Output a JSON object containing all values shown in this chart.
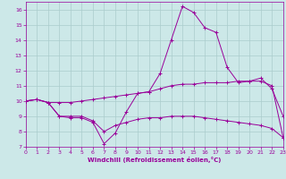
{
  "x": [
    0,
    1,
    2,
    3,
    4,
    5,
    6,
    7,
    8,
    9,
    10,
    11,
    12,
    13,
    14,
    15,
    16,
    17,
    18,
    19,
    20,
    21,
    22,
    23
  ],
  "line1": [
    10.0,
    10.1,
    9.9,
    9.0,
    8.9,
    8.9,
    8.6,
    7.2,
    7.9,
    9.3,
    10.5,
    10.6,
    11.8,
    14.0,
    16.2,
    15.8,
    14.8,
    14.5,
    12.2,
    11.2,
    11.3,
    11.5,
    10.8,
    9.0
  ],
  "line2": [
    10.0,
    10.1,
    9.9,
    9.9,
    9.9,
    10.0,
    10.1,
    10.2,
    10.3,
    10.4,
    10.5,
    10.6,
    10.8,
    11.0,
    11.1,
    11.1,
    11.2,
    11.2,
    11.2,
    11.3,
    11.3,
    11.3,
    11.0,
    7.6
  ],
  "line3": [
    10.0,
    10.1,
    9.9,
    9.0,
    9.0,
    9.0,
    8.7,
    8.0,
    8.4,
    8.6,
    8.8,
    8.9,
    8.9,
    9.0,
    9.0,
    9.0,
    8.9,
    8.8,
    8.7,
    8.6,
    8.5,
    8.4,
    8.2,
    7.6
  ],
  "color": "#990099",
  "bg_color": "#cce8e8",
  "grid_color": "#aacccc",
  "xlabel": "Windchill (Refroidissement éolien,°C)",
  "ylim": [
    7,
    16.5
  ],
  "xlim": [
    0,
    23
  ],
  "yticks": [
    7,
    8,
    9,
    10,
    11,
    12,
    13,
    14,
    15,
    16
  ],
  "xticks": [
    0,
    1,
    2,
    3,
    4,
    5,
    6,
    7,
    8,
    9,
    10,
    11,
    12,
    13,
    14,
    15,
    16,
    17,
    18,
    19,
    20,
    21,
    22,
    23
  ]
}
